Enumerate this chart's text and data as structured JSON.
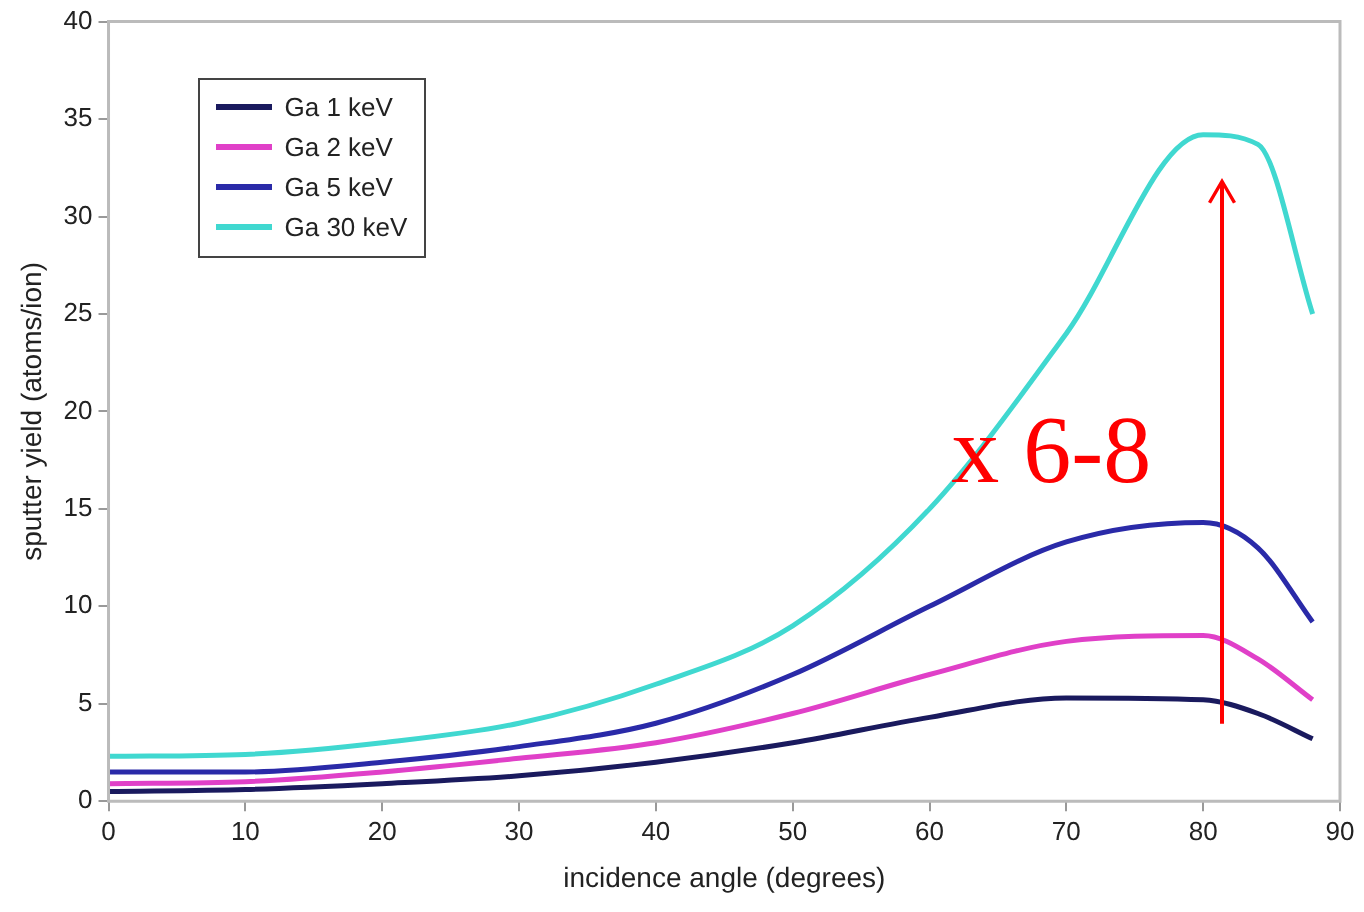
{
  "chart_data": {
    "type": "line",
    "xlabel": "incidence angle (degrees)",
    "ylabel": "sputter yield (atoms/ion)",
    "x": [
      0,
      10,
      20,
      30,
      40,
      50,
      60,
      70,
      80,
      84,
      88
    ],
    "series": [
      {
        "name": "Ga 1 keV",
        "color": "#1a1a5e",
        "values": [
          0.5,
          0.6,
          0.9,
          1.3,
          2,
          3,
          4.3,
          5.3,
          5.2,
          4.5,
          3.2
        ]
      },
      {
        "name": "Ga 2 keV",
        "color": "#e040c8",
        "values": [
          0.9,
          1,
          1.5,
          2.2,
          3,
          4.5,
          6.5,
          8.2,
          8.5,
          7.3,
          5.2
        ]
      },
      {
        "name": "Ga 5 keV",
        "color": "#2a2aa8",
        "values": [
          1.5,
          1.5,
          2,
          2.8,
          4,
          6.5,
          10,
          13.3,
          14.3,
          13,
          9.2
        ]
      },
      {
        "name": "Ga 30 keV",
        "color": "#40d8d0",
        "values": [
          2.3,
          2.4,
          3,
          4,
          6,
          9,
          15,
          24,
          34.2,
          33.7,
          25
        ]
      }
    ],
    "xlim": [
      0,
      90
    ],
    "xticks": [
      0,
      10,
      20,
      30,
      40,
      50,
      60,
      70,
      80,
      90
    ],
    "ylim": [
      0,
      40
    ],
    "yticks": [
      0,
      5,
      10,
      15,
      20,
      25,
      30,
      35,
      40
    ],
    "grid": false,
    "legend": "top left",
    "marker": "none",
    "line_style": "solid",
    "annotations": [
      "x 6-8"
    ]
  }
}
